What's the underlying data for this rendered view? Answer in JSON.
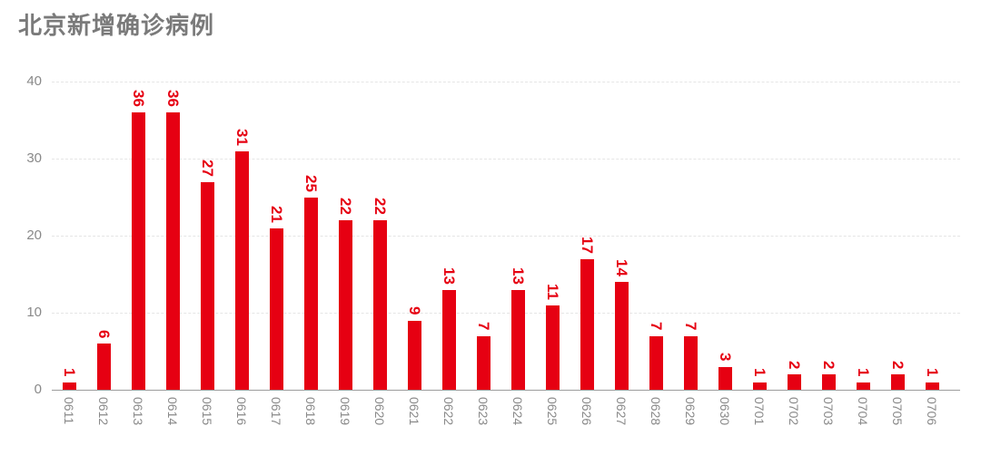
{
  "header": {
    "title": "北京新增确诊病例"
  },
  "colors": {
    "bar": "#e60012",
    "value_label": "#e60012",
    "axis_text": "#898989",
    "title_text": "#7a7a7a",
    "gridline": "#e5e5e5",
    "baseline": "#9c9c9c",
    "background": "#ffffff"
  },
  "chart_data": {
    "type": "bar",
    "title": "北京新增确诊病例",
    "categories": [
      "0611",
      "0612",
      "0613",
      "0614",
      "0615",
      "0616",
      "0617",
      "0618",
      "0619",
      "0620",
      "0621",
      "0622",
      "0623",
      "0624",
      "0625",
      "0626",
      "0627",
      "0628",
      "0629",
      "0630",
      "0701",
      "0702",
      "0703",
      "0704",
      "0705",
      "0706"
    ],
    "values": [
      1,
      6,
      36,
      36,
      27,
      31,
      21,
      25,
      22,
      22,
      9,
      13,
      7,
      13,
      11,
      17,
      14,
      7,
      7,
      3,
      1,
      2,
      2,
      1,
      2,
      1
    ],
    "xlabel": "",
    "ylabel": "",
    "ylim": [
      0,
      40
    ],
    "yticks": [
      0,
      10,
      20,
      30,
      40
    ],
    "grid": true,
    "gridline_style": "dashed",
    "legend_position": "none",
    "bar_value_labels_shown": true,
    "bar_label_rotation_degrees": 90,
    "x_tick_rotation_degrees": 90
  }
}
